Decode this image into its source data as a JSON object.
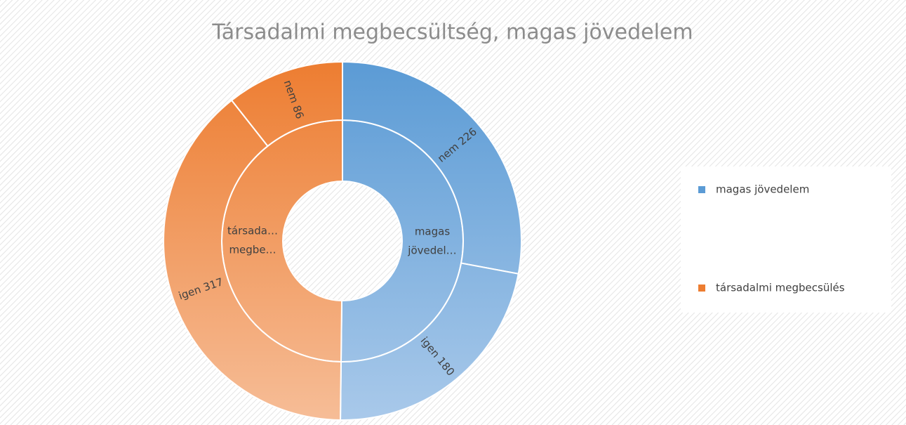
{
  "chart_data": {
    "type": "sunburst",
    "title": "Társadalmi megbecsültség, magas jövedelem",
    "series": [
      {
        "name": "magas jövedelem",
        "color": "#5b9bd5",
        "color_light": "#a9c9ea",
        "label_lines": [
          "magas",
          "jövedel…"
        ],
        "values": [
          226,
          180
        ],
        "value_labels": [
          "nem 226",
          "igen 180"
        ]
      },
      {
        "name": "társadalmi megbecsülés",
        "color": "#ed7d31",
        "color_light": "#f6bd97",
        "label_lines": [
          "társada…",
          "megbe…"
        ],
        "values": [
          317,
          86
        ],
        "value_labels": [
          "igen 317",
          "nem 86"
        ]
      }
    ],
    "legend": "right"
  }
}
